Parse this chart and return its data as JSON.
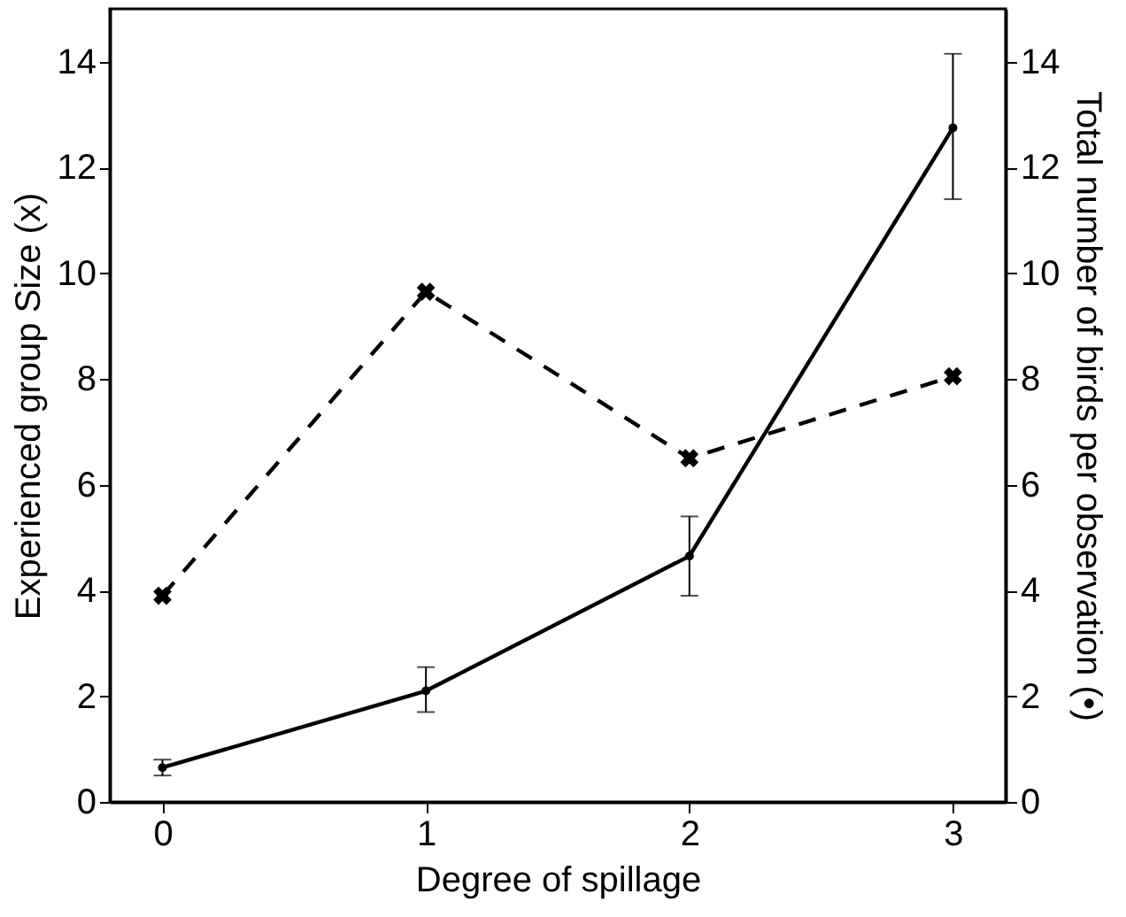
{
  "chart_data": {
    "type": "line",
    "xlabel": "Degree of spillage",
    "ylabel": "Experienced group Size (x)",
    "y2label": "Total number of birds per observation (•)",
    "x": [
      0,
      1,
      2,
      3
    ],
    "xlim": [
      -0.2,
      3.2
    ],
    "xticks": [
      0,
      1,
      2,
      3
    ],
    "ylim": [
      0,
      15
    ],
    "yticks": [
      0,
      2,
      4,
      6,
      8,
      10,
      12,
      14
    ],
    "y2lim": [
      0,
      15
    ],
    "y2ticks": [
      0,
      2,
      4,
      6,
      8,
      10,
      12,
      14
    ],
    "grid": false,
    "series": [
      {
        "color": "#000000",
        "values": [
          3.9,
          9.65,
          6.5,
          8.05
        ],
        "marker": "cross",
        "line_style": "dashed"
      },
      {
        "color": "#000000",
        "axis": "y2",
        "values": [
          0.65,
          2.1,
          4.65,
          12.75
        ],
        "marker": "circle",
        "line_style": "solid",
        "errors": [
          [
            0.5,
            0.8
          ],
          [
            1.7,
            2.55
          ],
          [
            3.9,
            5.4
          ],
          [
            11.4,
            14.15
          ]
        ]
      }
    ]
  }
}
